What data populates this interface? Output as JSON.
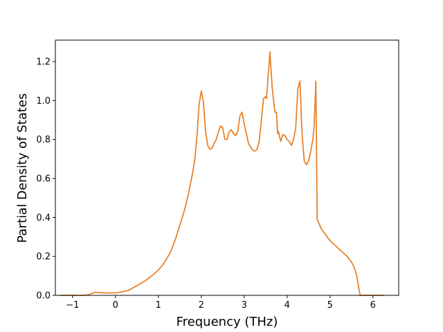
{
  "chart_data": {
    "type": "line",
    "xlabel": "Frequency (THz)",
    "ylabel": "Partial Density of States",
    "xlim": [
      -1.4,
      6.6
    ],
    "ylim": [
      0.0,
      1.31
    ],
    "grid": false,
    "xticks": [
      -1,
      0,
      1,
      2,
      3,
      4,
      5,
      6
    ],
    "xtick_labels": [
      "−1",
      "0",
      "1",
      "2",
      "3",
      "4",
      "5",
      "6"
    ],
    "yticks": [
      0.0,
      0.2,
      0.4,
      0.6,
      0.8,
      1.0,
      1.2
    ],
    "ytick_labels": [
      "0.0",
      "0.2",
      "0.4",
      "0.6",
      "0.8",
      "1.0",
      "1.2"
    ],
    "series": [
      {
        "color": "#e8822a",
        "x": [
          -1.3,
          -0.7,
          -0.6,
          -0.5,
          -0.4,
          -0.2,
          0.0,
          0.1,
          0.3,
          0.5,
          0.7,
          0.9,
          1.0,
          1.1,
          1.2,
          1.3,
          1.4,
          1.5,
          1.6,
          1.7,
          1.8,
          1.85,
          1.9,
          1.95,
          2.0,
          2.05,
          2.1,
          2.15,
          2.2,
          2.25,
          2.3,
          2.35,
          2.4,
          2.45,
          2.5,
          2.55,
          2.6,
          2.65,
          2.7,
          2.75,
          2.8,
          2.85,
          2.9,
          2.95,
          3.0,
          3.05,
          3.1,
          3.15,
          3.2,
          3.25,
          3.3,
          3.35,
          3.4,
          3.45,
          3.5,
          3.52,
          3.55,
          3.6,
          3.65,
          3.7,
          3.72,
          3.75,
          3.78,
          3.8,
          3.85,
          3.9,
          3.95,
          4.0,
          4.05,
          4.1,
          4.15,
          4.2,
          4.25,
          4.3,
          4.35,
          4.4,
          4.45,
          4.5,
          4.55,
          4.6,
          4.63,
          4.67,
          4.7,
          4.8,
          4.9,
          5.0,
          5.1,
          5.2,
          5.3,
          5.4,
          5.5,
          5.55,
          5.6,
          5.63,
          5.7,
          6.0,
          6.25
        ],
        "y": [
          0.0,
          0.0,
          0.005,
          0.015,
          0.015,
          0.012,
          0.013,
          0.015,
          0.025,
          0.05,
          0.075,
          0.11,
          0.13,
          0.155,
          0.19,
          0.23,
          0.29,
          0.36,
          0.43,
          0.52,
          0.63,
          0.7,
          0.82,
          0.98,
          1.05,
          0.99,
          0.84,
          0.77,
          0.75,
          0.755,
          0.78,
          0.8,
          0.84,
          0.87,
          0.86,
          0.8,
          0.8,
          0.84,
          0.85,
          0.83,
          0.82,
          0.84,
          0.92,
          0.94,
          0.88,
          0.83,
          0.78,
          0.76,
          0.745,
          0.74,
          0.75,
          0.79,
          0.9,
          1.01,
          1.02,
          1.01,
          1.1,
          1.25,
          1.07,
          0.97,
          0.94,
          0.94,
          0.83,
          0.84,
          0.79,
          0.825,
          0.82,
          0.8,
          0.79,
          0.77,
          0.8,
          0.86,
          1.06,
          1.1,
          0.82,
          0.69,
          0.67,
          0.69,
          0.74,
          0.8,
          0.87,
          1.1,
          0.39,
          0.34,
          0.31,
          0.28,
          0.26,
          0.24,
          0.22,
          0.2,
          0.17,
          0.15,
          0.12,
          0.09,
          0.0,
          0.0,
          0.0
        ]
      }
    ]
  }
}
